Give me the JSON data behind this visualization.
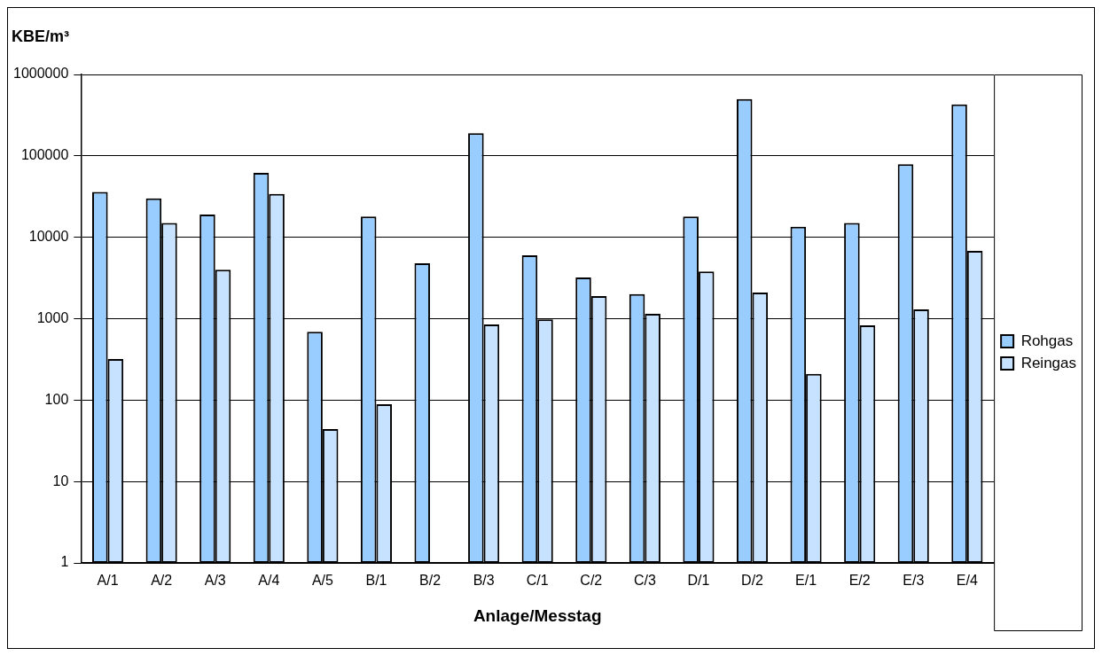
{
  "chart_data": {
    "type": "bar",
    "ylabel": "KBE/m³",
    "xlabel": "Anlage/Messtag",
    "categories": [
      "A/1",
      "A/2",
      "A/3",
      "A/4",
      "A/5",
      "B/1",
      "B/2",
      "B/3",
      "C/1",
      "C/2",
      "C/3",
      "D/1",
      "D/2",
      "E/1",
      "E/2",
      "E/3",
      "E/4"
    ],
    "series": [
      {
        "name": "Rohgas",
        "color": "#99ccff",
        "values": [
          36000,
          30000,
          19000,
          62000,
          690,
          18000,
          4800,
          190000,
          6000,
          3200,
          2000,
          18000,
          500000,
          13500,
          15000,
          79000,
          430000
        ]
      },
      {
        "name": "Reingas",
        "color": "#c6e2ff",
        "values": [
          320,
          15000,
          4000,
          34000,
          44,
          89,
          null,
          850,
          980,
          1900,
          1150,
          3800,
          2100,
          210,
          830,
          1300,
          6800
        ]
      }
    ],
    "log": "y",
    "ylim": [
      1,
      1000000
    ],
    "yticks": [
      1,
      10,
      100,
      1000,
      10000,
      100000,
      1000000
    ],
    "grid": "y",
    "legend": "right"
  }
}
